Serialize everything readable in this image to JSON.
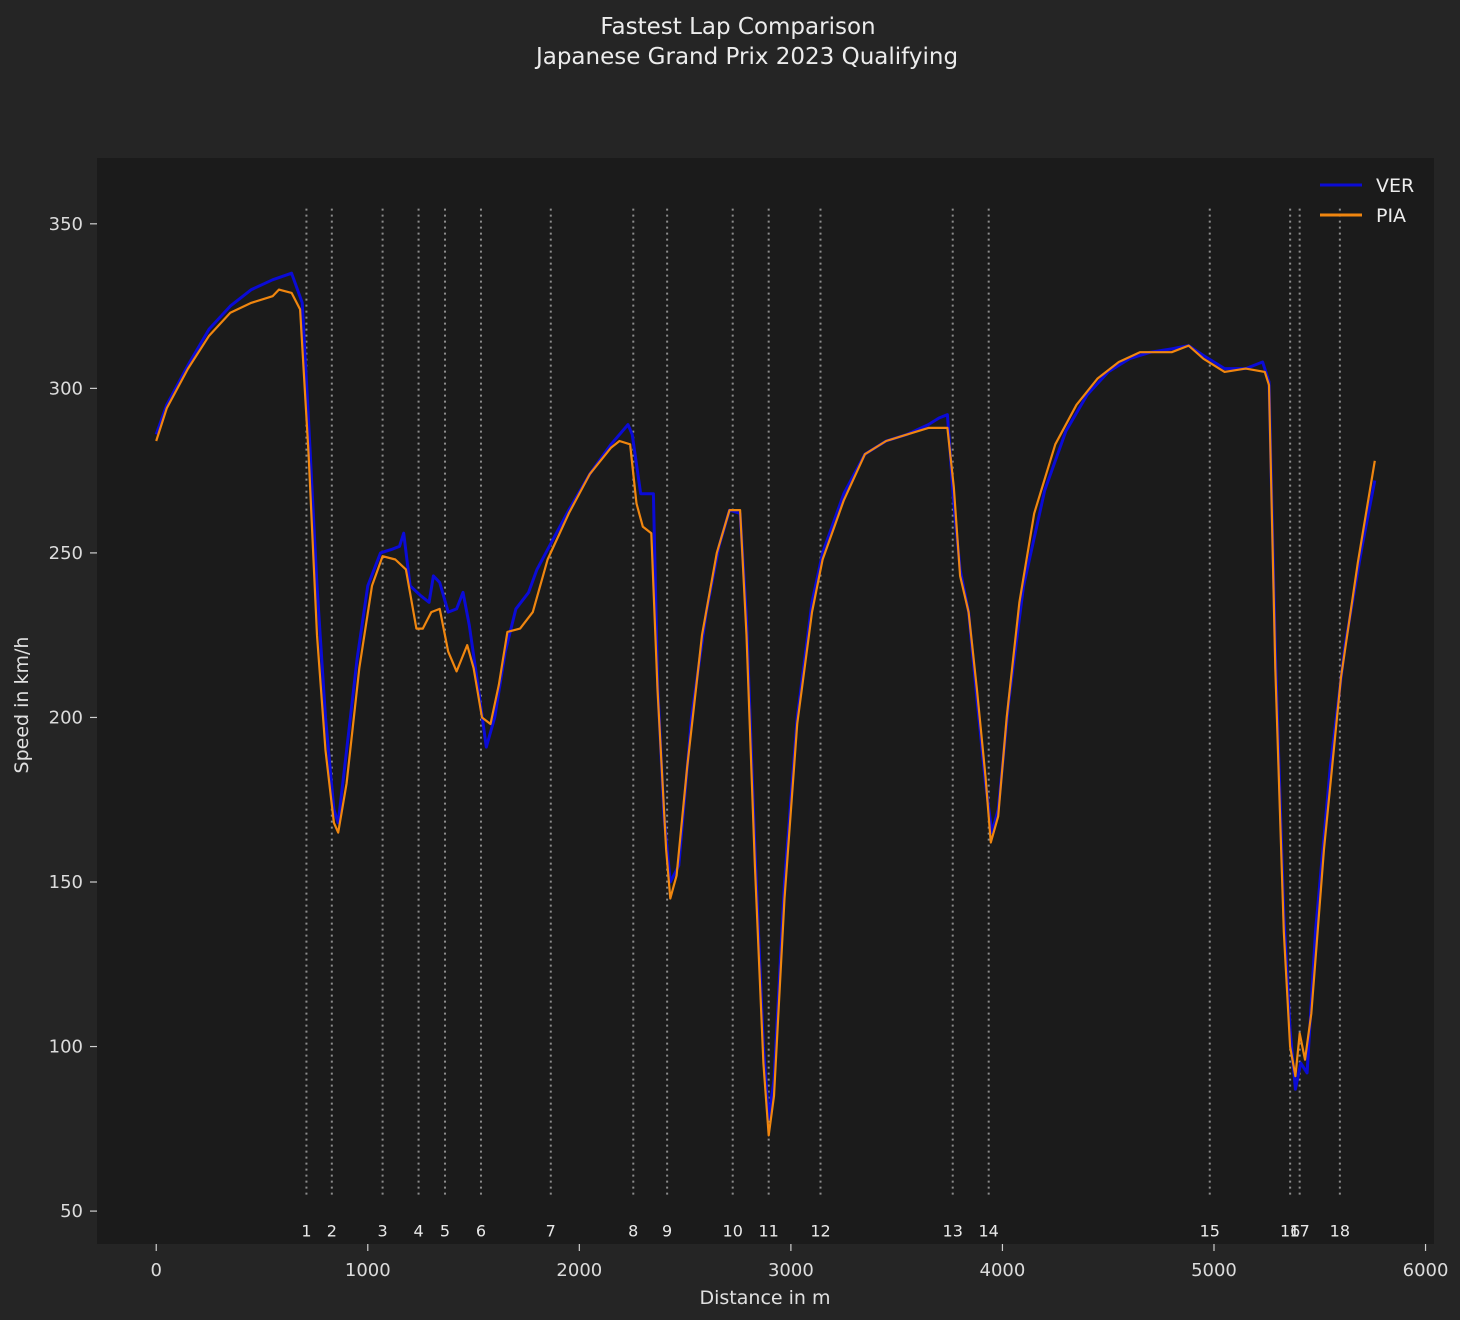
{
  "chart_data": {
    "type": "line",
    "title": "Fastest Lap Comparison",
    "subtitle": "Japanese Grand Prix 2023 Qualifying",
    "xlabel": "Distance in m",
    "ylabel": "Speed in km/h",
    "xlim": [
      -280,
      6040
    ],
    "ylim": [
      40,
      370
    ],
    "xticks": [
      0,
      1000,
      2000,
      3000,
      4000,
      5000,
      6000
    ],
    "yticks": [
      50,
      100,
      150,
      200,
      250,
      300,
      350
    ],
    "grid": false,
    "legend_position": "top-right",
    "corner_marker_range": [
      55,
      355
    ],
    "corners": [
      {
        "label": "1",
        "distance": 710
      },
      {
        "label": "2",
        "distance": 830
      },
      {
        "label": "3",
        "distance": 1070
      },
      {
        "label": "4",
        "distance": 1240
      },
      {
        "label": "5",
        "distance": 1365
      },
      {
        "label": "6",
        "distance": 1535
      },
      {
        "label": "7",
        "distance": 1865
      },
      {
        "label": "8",
        "distance": 2255
      },
      {
        "label": "9",
        "distance": 2415
      },
      {
        "label": "10",
        "distance": 2725
      },
      {
        "label": "11",
        "distance": 2895
      },
      {
        "label": "12",
        "distance": 3140
      },
      {
        "label": "13",
        "distance": 3765
      },
      {
        "label": "14",
        "distance": 3935
      },
      {
        "label": "15",
        "distance": 4980
      },
      {
        "label": "16",
        "distance": 5360
      },
      {
        "label": "17",
        "distance": 5405
      },
      {
        "label": "18",
        "distance": 5595
      }
    ],
    "series": [
      {
        "name": "VER",
        "color": "#0b0bd6",
        "points": [
          [
            0,
            286
          ],
          [
            50,
            295
          ],
          [
            150,
            307
          ],
          [
            250,
            318
          ],
          [
            350,
            325
          ],
          [
            450,
            330
          ],
          [
            550,
            333
          ],
          [
            640,
            335
          ],
          [
            690,
            326
          ],
          [
            720,
            290
          ],
          [
            760,
            240
          ],
          [
            800,
            200
          ],
          [
            840,
            172
          ],
          [
            860,
            168
          ],
          [
            900,
            190
          ],
          [
            950,
            218
          ],
          [
            1000,
            240
          ],
          [
            1060,
            250
          ],
          [
            1110,
            251
          ],
          [
            1150,
            252
          ],
          [
            1170,
            256
          ],
          [
            1200,
            240
          ],
          [
            1250,
            237
          ],
          [
            1290,
            235
          ],
          [
            1310,
            243
          ],
          [
            1340,
            241
          ],
          [
            1380,
            232
          ],
          [
            1420,
            233
          ],
          [
            1450,
            238
          ],
          [
            1480,
            228
          ],
          [
            1520,
            210
          ],
          [
            1560,
            191
          ],
          [
            1600,
            200
          ],
          [
            1650,
            220
          ],
          [
            1700,
            233
          ],
          [
            1760,
            238
          ],
          [
            1800,
            245
          ],
          [
            1850,
            251
          ],
          [
            1950,
            263
          ],
          [
            2050,
            274
          ],
          [
            2150,
            283
          ],
          [
            2230,
            289
          ],
          [
            2250,
            286
          ],
          [
            2290,
            268
          ],
          [
            2350,
            268
          ],
          [
            2370,
            210
          ],
          [
            2400,
            170
          ],
          [
            2430,
            150
          ],
          [
            2470,
            155
          ],
          [
            2530,
            200
          ],
          [
            2600,
            232
          ],
          [
            2660,
            252
          ],
          [
            2710,
            263
          ],
          [
            2760,
            262
          ],
          [
            2790,
            230
          ],
          [
            2830,
            160
          ],
          [
            2870,
            100
          ],
          [
            2895,
            78
          ],
          [
            2920,
            90
          ],
          [
            2970,
            150
          ],
          [
            3030,
            200
          ],
          [
            3100,
            235
          ],
          [
            3150,
            250
          ],
          [
            3250,
            268
          ],
          [
            3350,
            280
          ],
          [
            3450,
            284
          ],
          [
            3550,
            286
          ],
          [
            3650,
            289
          ],
          [
            3700,
            291
          ],
          [
            3740,
            292
          ],
          [
            3770,
            265
          ],
          [
            3800,
            245
          ],
          [
            3840,
            232
          ],
          [
            3880,
            205
          ],
          [
            3920,
            180
          ],
          [
            3950,
            165
          ],
          [
            3980,
            172
          ],
          [
            4030,
            205
          ],
          [
            4100,
            240
          ],
          [
            4200,
            269
          ],
          [
            4300,
            287
          ],
          [
            4400,
            298
          ],
          [
            4500,
            305
          ],
          [
            4600,
            309
          ],
          [
            4700,
            311
          ],
          [
            4800,
            312
          ],
          [
            4880,
            313
          ],
          [
            4950,
            310
          ],
          [
            5050,
            306
          ],
          [
            5150,
            306
          ],
          [
            5230,
            308
          ],
          [
            5260,
            302
          ],
          [
            5290,
            220
          ],
          [
            5330,
            140
          ],
          [
            5360,
            105
          ],
          [
            5385,
            87
          ],
          [
            5410,
            95
          ],
          [
            5440,
            92
          ],
          [
            5480,
            135
          ],
          [
            5550,
            185
          ],
          [
            5620,
            222
          ],
          [
            5700,
            252
          ],
          [
            5760,
            272
          ]
        ]
      },
      {
        "name": "PIA",
        "color": "#f0860f",
        "points": [
          [
            0,
            284
          ],
          [
            50,
            294
          ],
          [
            150,
            306
          ],
          [
            250,
            316
          ],
          [
            350,
            323
          ],
          [
            450,
            326
          ],
          [
            550,
            328
          ],
          [
            580,
            330
          ],
          [
            640,
            329
          ],
          [
            680,
            324
          ],
          [
            720,
            280
          ],
          [
            760,
            225
          ],
          [
            800,
            190
          ],
          [
            840,
            168
          ],
          [
            860,
            165
          ],
          [
            900,
            180
          ],
          [
            960,
            215
          ],
          [
            1020,
            240
          ],
          [
            1070,
            249
          ],
          [
            1130,
            248
          ],
          [
            1180,
            245
          ],
          [
            1230,
            227
          ],
          [
            1260,
            227
          ],
          [
            1300,
            232
          ],
          [
            1340,
            233
          ],
          [
            1380,
            220
          ],
          [
            1420,
            214
          ],
          [
            1470,
            222
          ],
          [
            1500,
            215
          ],
          [
            1540,
            200
          ],
          [
            1580,
            198
          ],
          [
            1620,
            210
          ],
          [
            1660,
            226
          ],
          [
            1720,
            227
          ],
          [
            1780,
            232
          ],
          [
            1850,
            248
          ],
          [
            1950,
            262
          ],
          [
            2050,
            274
          ],
          [
            2150,
            282
          ],
          [
            2190,
            284
          ],
          [
            2240,
            283
          ],
          [
            2270,
            265
          ],
          [
            2300,
            258
          ],
          [
            2340,
            256
          ],
          [
            2370,
            208
          ],
          [
            2410,
            160
          ],
          [
            2430,
            145
          ],
          [
            2460,
            152
          ],
          [
            2510,
            185
          ],
          [
            2580,
            225
          ],
          [
            2650,
            250
          ],
          [
            2710,
            263
          ],
          [
            2760,
            263
          ],
          [
            2790,
            225
          ],
          [
            2830,
            155
          ],
          [
            2870,
            95
          ],
          [
            2895,
            73
          ],
          [
            2920,
            85
          ],
          [
            2970,
            145
          ],
          [
            3030,
            198
          ],
          [
            3100,
            232
          ],
          [
            3150,
            248
          ],
          [
            3250,
            266
          ],
          [
            3350,
            280
          ],
          [
            3450,
            284
          ],
          [
            3550,
            286
          ],
          [
            3650,
            288
          ],
          [
            3740,
            288
          ],
          [
            3770,
            270
          ],
          [
            3800,
            243
          ],
          [
            3840,
            232
          ],
          [
            3880,
            208
          ],
          [
            3920,
            182
          ],
          [
            3945,
            162
          ],
          [
            3980,
            170
          ],
          [
            4020,
            200
          ],
          [
            4080,
            235
          ],
          [
            4150,
            262
          ],
          [
            4250,
            283
          ],
          [
            4350,
            295
          ],
          [
            4450,
            303
          ],
          [
            4550,
            308
          ],
          [
            4650,
            311
          ],
          [
            4800,
            311
          ],
          [
            4880,
            313
          ],
          [
            4950,
            309
          ],
          [
            5050,
            305
          ],
          [
            5150,
            306
          ],
          [
            5240,
            305
          ],
          [
            5260,
            301
          ],
          [
            5290,
            215
          ],
          [
            5330,
            135
          ],
          [
            5360,
            100
          ],
          [
            5385,
            91
          ],
          [
            5405,
            104
          ],
          [
            5430,
            96
          ],
          [
            5460,
            110
          ],
          [
            5520,
            160
          ],
          [
            5600,
            212
          ],
          [
            5680,
            247
          ],
          [
            5760,
            278
          ]
        ]
      }
    ]
  }
}
